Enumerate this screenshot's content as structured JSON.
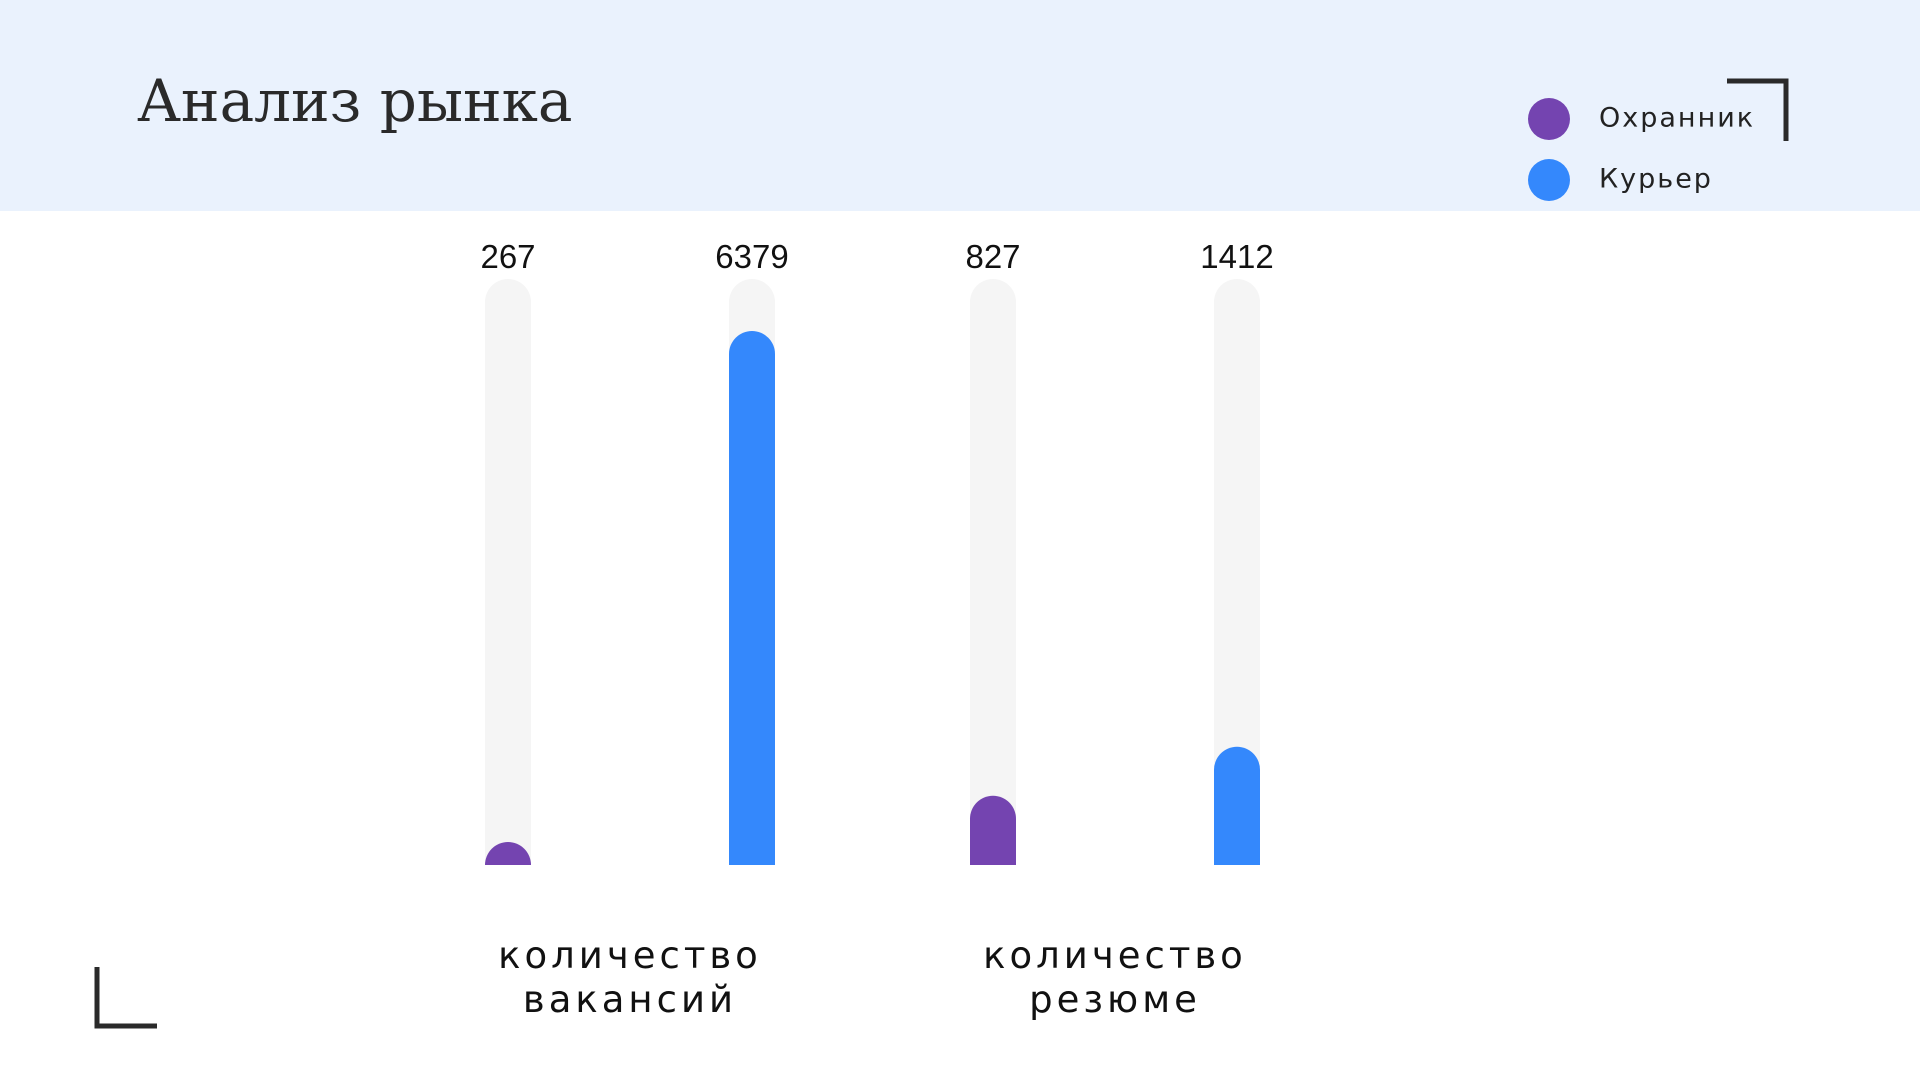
{
  "chart_data": {
    "type": "bar",
    "title": "Анализ рынка",
    "categories": [
      "количество вакансий",
      "количество резюме"
    ],
    "series": [
      {
        "name": "Охранник",
        "color": "#7444b0",
        "values": [
          267,
          827
        ]
      },
      {
        "name": "Курьер",
        "color": "#3488fc",
        "values": [
          6379,
          1412
        ]
      }
    ],
    "ylim": [
      0,
      7000
    ]
  }
}
